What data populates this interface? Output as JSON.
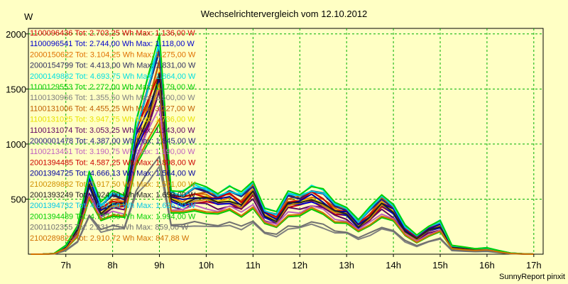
{
  "chart_data": {
    "type": "line",
    "title": "Wechselrichtervergleich vom 12.10.2012",
    "ylabel": "W",
    "xlabel": "",
    "footer": "SunnyReport pinxit",
    "xlim": [
      6.2,
      17.2
    ],
    "ylim": [
      0,
      2050
    ],
    "grid": true,
    "x_ticks": [
      {
        "v": 7,
        "label": "7h"
      },
      {
        "v": 8,
        "label": "8h"
      },
      {
        "v": 9,
        "label": "9h"
      },
      {
        "v": 10,
        "label": "10h"
      },
      {
        "v": 11,
        "label": "11h"
      },
      {
        "v": 12,
        "label": "12h"
      },
      {
        "v": 13,
        "label": "13h"
      },
      {
        "v": 14,
        "label": "14h"
      },
      {
        "v": 15,
        "label": "15h"
      },
      {
        "v": 16,
        "label": "16h"
      },
      {
        "v": 17,
        "label": "17h"
      }
    ],
    "y_ticks": [
      {
        "v": 500,
        "label": "500"
      },
      {
        "v": 1000,
        "label": "1000"
      },
      {
        "v": 1500,
        "label": "1500"
      },
      {
        "v": 2000,
        "label": "2000"
      }
    ],
    "x": [
      6.25,
      6.5,
      6.75,
      7.0,
      7.25,
      7.5,
      7.75,
      8.0,
      8.25,
      8.5,
      8.75,
      9.0,
      9.25,
      9.5,
      9.75,
      10.0,
      10.25,
      10.5,
      10.75,
      11.0,
      11.25,
      11.5,
      11.75,
      12.0,
      12.25,
      12.5,
      12.75,
      13.0,
      13.25,
      13.5,
      13.75,
      14.0,
      14.25,
      14.5,
      14.75,
      15.0,
      15.25,
      15.5,
      15.75,
      16.0,
      16.25,
      16.5,
      16.75,
      17.0
    ],
    "base": [
      0,
      0,
      5,
      60,
      200,
      600,
      360,
      430,
      420,
      950,
      1200,
      1500,
      460,
      440,
      480,
      470,
      440,
      470,
      420,
      520,
      330,
      290,
      430,
      430,
      480,
      440,
      360,
      340,
      240,
      320,
      420,
      360,
      200,
      130,
      200,
      240,
      60,
      50,
      40,
      45,
      25,
      8,
      3,
      0
    ],
    "series": [
      {
        "name": "1100096436",
        "label": "1100096436 Tot: 2.703,25 Wh Max: 1.136,00 W",
        "color": "#d00000",
        "scale": 1.0
      },
      {
        "name": "1100096541",
        "label": "1100096541 Tot: 2.744,00 Wh Max: 1.118,00 W",
        "color": "#0000cc",
        "scale": 1.02
      },
      {
        "name": "2000150622",
        "label": "2000150622 Tot: 3.104,25 Wh Max: 1.275,00 W",
        "color": "#e07000",
        "scale": 1.12
      },
      {
        "name": "2000154799",
        "label": "2000154799 Tot: 4.413,00 Wh Max: 1.831,00 W",
        "color": "#303060",
        "scale": 1.22
      },
      {
        "name": "2000149882",
        "label": "2000149882 Tot: 4.693,75 Wh Max: 1.864,00 W",
        "color": "#00e0e0",
        "scale": 1.28
      },
      {
        "name": "1100129553",
        "label": "1100129553 Tot: 2.272,00 Wh Max: 1.179,00 W",
        "color": "#00cc00",
        "scale": 0.82
      },
      {
        "name": "1100130966",
        "label": "1100130966 Tot: 1.355,50 Wh Max: 1.500,00 W",
        "color": "#808080",
        "scale": 0.55
      },
      {
        "name": "1100131006",
        "label": "1100131006 Tot: 4.455,25 Wh Max: 3.227,00 W",
        "color": "#c06000",
        "scale": 1.18
      },
      {
        "name": "1100131025",
        "label": "1100131025 Tot: 3.947,75 Wh Max: 1.736,00 W",
        "color": "#e8e000",
        "scale": 1.08
      },
      {
        "name": "1100131074",
        "label": "1100131074 Tot: 3.053,25 Wh Max: 1.143,00 W",
        "color": "#600060",
        "scale": 0.95
      },
      {
        "name": "2000001478",
        "label": "2000001478 Tot: 4.387,00 Wh Max: 1.845,00 W",
        "color": "#202080",
        "scale": 1.2
      },
      {
        "name": "1100213451",
        "label": "1100213451 Tot: 3.190,75 Wh Max: 1.190,00 W",
        "color": "#c060c0",
        "scale": 0.9
      },
      {
        "name": "2001394485",
        "label": "2001394485 Tot: 4.587,25 Wh Max: 1.808,00 W",
        "color": "#cc0000",
        "scale": 1.14
      },
      {
        "name": "2001394725",
        "label": "2001394725 Tot: 4.666,13 Wh Max: 1.564,00 W",
        "color": "#0000a0",
        "scale": 1.1
      },
      {
        "name": "2100289882",
        "label": "2100289882 Tot: 3.917,50 Wh Max: 1.501,00 W",
        "color": "#d09000",
        "scale": 1.04
      },
      {
        "name": "2001393249",
        "label": "2001393249 Tot: 4.024,00 Wh Max: 1.653,00 W",
        "color": "#202020",
        "scale": 1.06
      },
      {
        "name": "2001394732",
        "label": "2001394732 Tot: 4.697,50 Wh Max: 1.626,00 W",
        "color": "#00c8e8",
        "scale": 1.24
      },
      {
        "name": "2001394489",
        "label": "2001394489 Tot: 4.737,50 Wh Max: 1.994,00 W",
        "color": "#00d000",
        "scale": 1.3
      },
      {
        "name": "2001102355",
        "label": "2001102355 Tot: 2.231,75 Wh Max: 859,00 W",
        "color": "#707070",
        "scale": 0.6
      },
      {
        "name": "2100289822",
        "label": "2100289822 Tot: 2.910,72 Wh Max: 847,88 W",
        "color": "#d07000",
        "scale": 0.85
      }
    ]
  }
}
